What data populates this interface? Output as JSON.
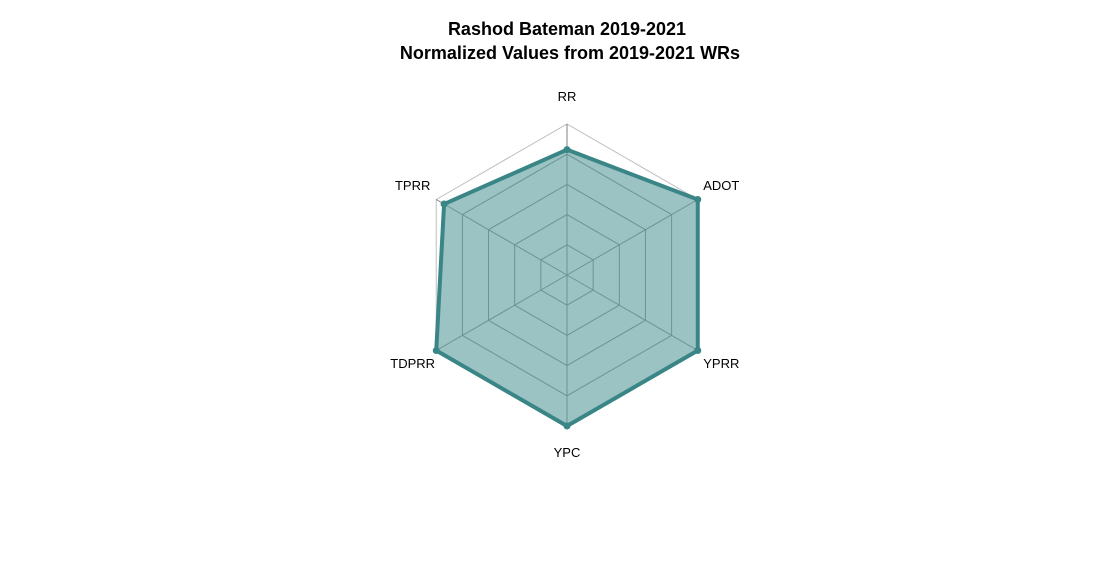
{
  "chart_data": {
    "type": "radar",
    "title": "Rashod Bateman 2019-2021",
    "subtitle": "Normalized Values from 2019-2021 WRs",
    "axes": [
      "RR",
      "ADOT",
      "YPRR",
      "YPC",
      "TDPRR",
      "TPRR"
    ],
    "range": [
      0,
      1
    ],
    "grid_levels": 5,
    "series": [
      {
        "values": [
          0.83,
          1.0,
          1.0,
          1.0,
          1.0,
          0.94
        ]
      }
    ],
    "colors": {
      "series_line": "#3a8585",
      "series_fill": "#5f9ea0",
      "outer_grid": "#bfbfbf",
      "inner_grid": "#808080"
    }
  }
}
